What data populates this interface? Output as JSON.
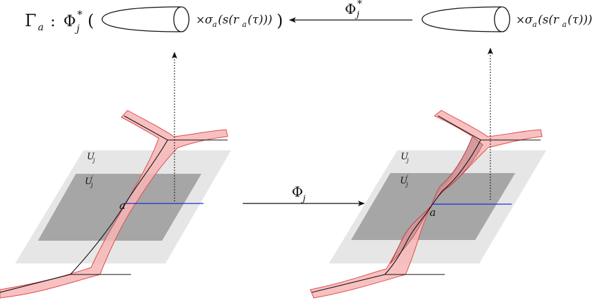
{
  "top_left": {
    "gamma": "Γ",
    "gamma_sub": "a",
    "colon": ":",
    "phi": "Φ",
    "phi_sup": "*",
    "phi_sub": "j",
    "open_paren": "(",
    "times": "×",
    "sigma": "σ",
    "sigma_sub": "a",
    "tail_expr": "(s(r",
    "r_sub": "a",
    "tail_close": "(τ)))",
    "close_paren": ")"
  },
  "top_right": {
    "times": "×",
    "sigma": "σ",
    "sigma_sub": "a",
    "tail_expr": "(s(r",
    "r_sub": "a",
    "tail_close": "(τ)))"
  },
  "top_arrow": {
    "phi": "Φ",
    "sup": "*",
    "sub": "j"
  },
  "middle_arrow": {
    "phi": "Φ",
    "sub": "j"
  },
  "left_panel": {
    "outer_label": "U",
    "outer_sub": "j",
    "inner_label": "U",
    "inner_prime": "′",
    "inner_sub": "j",
    "point_label": "a"
  },
  "right_panel": {
    "outer_label": "U",
    "outer_sub": "j",
    "inner_label": "U",
    "inner_prime": "′",
    "inner_sub": "j",
    "point_label": "a"
  },
  "colors": {
    "outer_plane": "#e6e6e6",
    "inner_plane": "#a6a6a6",
    "tube_fill": "#f7b6b6",
    "tube_edge": "#e04a4a",
    "pinch_fill": "#c98d93",
    "blue_line": "#1a2fd6"
  }
}
